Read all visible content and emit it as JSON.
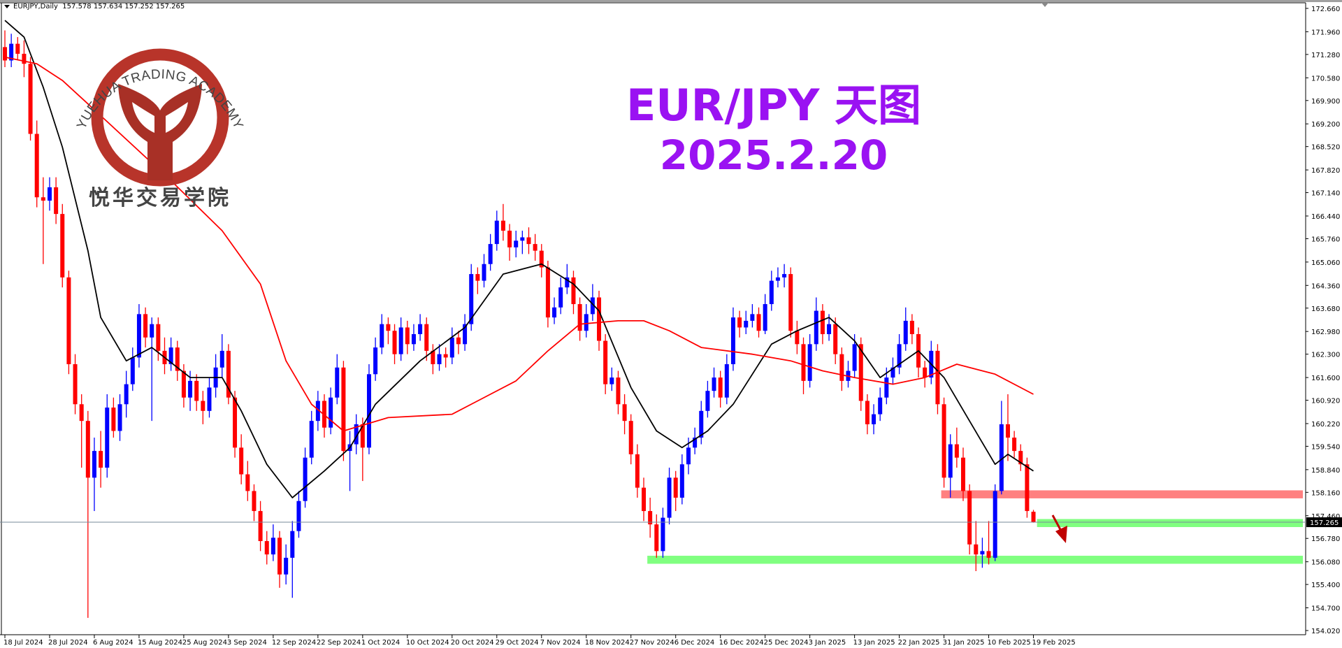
{
  "header": {
    "symbol_timeframe": "EURJPY,Daily",
    "ohlc": "157.578 157.634 157.252 157.265"
  },
  "title": {
    "line1": "EUR/JPY 天图",
    "line2": "2025.2.20"
  },
  "logo": {
    "text_en": "YUEHUA TRADING ACADEMY",
    "text_cn": "悦华交易学院",
    "color": "#b8342a"
  },
  "colors": {
    "bull": "#0000ff",
    "bear": "#ff0000",
    "ma_fast": "#000000",
    "ma_slow": "#ff0000",
    "resistance_zone": "#ff8080",
    "support_zone": "#80ff80",
    "title": "#9a12f2",
    "arrow": "#c00000"
  },
  "chart_data": {
    "type": "candlestick",
    "symbol": "EURJPY",
    "timeframe": "Daily",
    "ylim": [
      154.02,
      172.66
    ],
    "y_ticks": [
      172.66,
      171.96,
      171.28,
      170.58,
      169.9,
      169.2,
      168.52,
      167.82,
      167.14,
      166.44,
      165.76,
      165.06,
      164.36,
      163.68,
      162.98,
      162.3,
      161.6,
      160.92,
      160.22,
      159.54,
      158.84,
      158.16,
      157.46,
      156.78,
      156.08,
      155.4,
      154.7,
      154.02
    ],
    "x_tick_labels": [
      "18 Jul 2024",
      "28 Jul 2024",
      "6 Aug 2024",
      "15 Aug 2024",
      "25 Aug 2024",
      "3 Sep 2024",
      "12 Sep 2024",
      "22 Sep 2024",
      "1 Oct 2024",
      "10 Oct 2024",
      "20 Oct 2024",
      "29 Oct 2024",
      "7 Nov 2024",
      "18 Nov 2024",
      "27 Nov 2024",
      "6 Dec 2024",
      "16 Dec 2024",
      "25 Dec 2024",
      "3 Jan 2025",
      "13 Jan 2025",
      "22 Jan 2025",
      "31 Jan 2025",
      "10 Feb 2025",
      "19 Feb 2025"
    ],
    "current_price": "157.265",
    "ohlc": [
      [
        171.5,
        172.0,
        170.9,
        171.1
      ],
      [
        171.1,
        171.9,
        170.9,
        171.6
      ],
      [
        171.6,
        171.8,
        171.1,
        171.3
      ],
      [
        171.3,
        171.7,
        170.6,
        171.0
      ],
      [
        171.0,
        171.2,
        168.7,
        168.9
      ],
      [
        168.9,
        169.3,
        166.7,
        167.0
      ],
      [
        167.0,
        167.6,
        165.0,
        166.9
      ],
      [
        166.9,
        167.6,
        166.6,
        167.3
      ],
      [
        167.3,
        167.6,
        166.2,
        166.5
      ],
      [
        166.5,
        166.8,
        164.3,
        164.6
      ],
      [
        164.6,
        164.8,
        161.7,
        162.0
      ],
      [
        162.0,
        162.3,
        160.5,
        160.8
      ],
      [
        160.8,
        161.1,
        158.9,
        160.3
      ],
      [
        160.3,
        160.6,
        154.4,
        158.6
      ],
      [
        158.6,
        159.8,
        157.6,
        159.4
      ],
      [
        159.4,
        160.0,
        158.3,
        158.9
      ],
      [
        158.9,
        161.1,
        158.6,
        160.7
      ],
      [
        160.7,
        161.0,
        159.8,
        160.0
      ],
      [
        160.0,
        161.1,
        159.7,
        160.8
      ],
      [
        160.8,
        161.8,
        160.4,
        161.4
      ],
      [
        161.4,
        162.5,
        161.2,
        162.2
      ],
      [
        162.2,
        163.8,
        161.9,
        163.5
      ],
      [
        163.5,
        163.7,
        162.5,
        162.8
      ],
      [
        162.8,
        163.4,
        160.3,
        163.2
      ],
      [
        163.2,
        163.4,
        162.1,
        162.4
      ],
      [
        162.4,
        162.8,
        161.7,
        162.0
      ],
      [
        162.0,
        162.8,
        161.8,
        162.5
      ],
      [
        162.5,
        162.7,
        161.5,
        161.8
      ],
      [
        161.8,
        162.0,
        160.7,
        161.0
      ],
      [
        161.0,
        161.8,
        160.6,
        161.5
      ],
      [
        161.5,
        161.7,
        160.6,
        160.9
      ],
      [
        160.9,
        161.2,
        160.2,
        160.6
      ],
      [
        160.6,
        161.6,
        160.4,
        161.3
      ],
      [
        161.3,
        162.3,
        161.0,
        161.9
      ],
      [
        161.9,
        162.9,
        161.6,
        162.4
      ],
      [
        162.4,
        162.6,
        160.8,
        161.0
      ],
      [
        161.0,
        161.2,
        159.2,
        159.5
      ],
      [
        159.5,
        159.9,
        158.4,
        158.7
      ],
      [
        158.7,
        159.1,
        157.9,
        158.2
      ],
      [
        158.2,
        158.4,
        157.3,
        157.6
      ],
      [
        157.6,
        157.9,
        156.4,
        156.7
      ],
      [
        156.7,
        157.0,
        156.0,
        156.3
      ],
      [
        156.3,
        157.2,
        156.1,
        156.8
      ],
      [
        156.8,
        157.0,
        155.3,
        155.7
      ],
      [
        155.7,
        156.6,
        155.4,
        156.2
      ],
      [
        156.2,
        157.3,
        155.0,
        157.0
      ],
      [
        157.0,
        158.2,
        156.8,
        157.9
      ],
      [
        157.9,
        159.5,
        157.7,
        159.2
      ],
      [
        159.2,
        160.6,
        159.0,
        160.3
      ],
      [
        160.3,
        161.2,
        160.0,
        160.9
      ],
      [
        160.9,
        161.1,
        159.8,
        160.1
      ],
      [
        160.1,
        161.3,
        159.9,
        161.0
      ],
      [
        161.0,
        162.3,
        160.8,
        161.9
      ],
      [
        161.9,
        162.1,
        159.1,
        159.4
      ],
      [
        159.4,
        160.0,
        158.2,
        159.6
      ],
      [
        159.6,
        160.5,
        159.3,
        160.2
      ],
      [
        160.2,
        160.4,
        158.5,
        159.5
      ],
      [
        159.5,
        162.0,
        159.3,
        161.7
      ],
      [
        161.7,
        162.8,
        161.5,
        162.5
      ],
      [
        162.5,
        163.5,
        162.3,
        163.2
      ],
      [
        163.2,
        163.4,
        162.6,
        163.0
      ],
      [
        163.0,
        163.2,
        162.0,
        162.3
      ],
      [
        162.3,
        163.4,
        162.1,
        163.1
      ],
      [
        163.1,
        163.3,
        162.3,
        162.6
      ],
      [
        162.6,
        163.2,
        162.4,
        162.9
      ],
      [
        162.9,
        163.5,
        162.7,
        163.2
      ],
      [
        163.2,
        163.4,
        162.1,
        162.4
      ],
      [
        162.4,
        162.6,
        161.7,
        162.0
      ],
      [
        162.0,
        162.6,
        161.8,
        162.3
      ],
      [
        162.3,
        162.5,
        161.9,
        162.2
      ],
      [
        162.2,
        163.1,
        162.0,
        162.8
      ],
      [
        162.8,
        163.0,
        162.3,
        162.6
      ],
      [
        162.6,
        163.5,
        162.4,
        163.2
      ],
      [
        163.2,
        165.0,
        163.0,
        164.7
      ],
      [
        164.7,
        164.9,
        164.1,
        164.5
      ],
      [
        164.5,
        165.3,
        164.3,
        165.0
      ],
      [
        165.0,
        165.9,
        164.8,
        165.6
      ],
      [
        165.6,
        166.6,
        165.4,
        166.3
      ],
      [
        166.3,
        166.8,
        165.7,
        166.0
      ],
      [
        166.0,
        166.2,
        165.1,
        165.5
      ],
      [
        165.5,
        166.0,
        165.2,
        165.7
      ],
      [
        165.7,
        166.0,
        165.3,
        165.8
      ],
      [
        165.8,
        166.1,
        165.3,
        165.6
      ],
      [
        165.6,
        165.9,
        165.1,
        165.4
      ],
      [
        165.4,
        165.6,
        164.6,
        164.9
      ],
      [
        164.9,
        165.1,
        163.1,
        163.4
      ],
      [
        163.4,
        164.0,
        163.2,
        163.7
      ],
      [
        163.7,
        164.6,
        163.5,
        164.3
      ],
      [
        164.3,
        165.0,
        164.1,
        164.6
      ],
      [
        164.6,
        164.8,
        163.5,
        163.8
      ],
      [
        163.8,
        164.0,
        162.7,
        163.0
      ],
      [
        163.0,
        163.8,
        162.8,
        163.5
      ],
      [
        163.5,
        164.4,
        163.3,
        164.0
      ],
      [
        164.0,
        164.2,
        162.4,
        162.7
      ],
      [
        162.7,
        162.9,
        161.1,
        161.4
      ],
      [
        161.4,
        161.9,
        161.2,
        161.6
      ],
      [
        161.6,
        161.8,
        160.5,
        160.8
      ],
      [
        160.8,
        161.1,
        159.9,
        160.3
      ],
      [
        160.3,
        160.5,
        159.0,
        159.3
      ],
      [
        159.3,
        159.6,
        158.0,
        158.3
      ],
      [
        158.3,
        158.6,
        157.3,
        157.6
      ],
      [
        157.6,
        158.0,
        156.8,
        157.2
      ],
      [
        157.2,
        157.5,
        156.2,
        156.4
      ],
      [
        156.4,
        157.7,
        156.2,
        157.4
      ],
      [
        157.4,
        158.9,
        157.2,
        158.6
      ],
      [
        158.6,
        158.8,
        157.6,
        158.0
      ],
      [
        158.0,
        159.3,
        157.8,
        159.0
      ],
      [
        159.0,
        159.8,
        158.7,
        159.5
      ],
      [
        159.5,
        160.1,
        159.3,
        159.8
      ],
      [
        159.8,
        160.9,
        159.6,
        160.6
      ],
      [
        160.6,
        161.5,
        160.4,
        161.2
      ],
      [
        161.2,
        161.9,
        161.0,
        161.6
      ],
      [
        161.6,
        161.8,
        160.7,
        161.0
      ],
      [
        161.0,
        162.3,
        160.8,
        162.0
      ],
      [
        162.0,
        163.7,
        161.8,
        163.4
      ],
      [
        163.4,
        163.6,
        162.8,
        163.1
      ],
      [
        163.1,
        163.6,
        162.9,
        163.3
      ],
      [
        163.3,
        163.8,
        163.1,
        163.5
      ],
      [
        163.5,
        163.7,
        162.8,
        163.0
      ],
      [
        163.0,
        164.1,
        162.9,
        163.8
      ],
      [
        163.8,
        164.8,
        163.6,
        164.5
      ],
      [
        164.5,
        164.9,
        164.3,
        164.6
      ],
      [
        164.6,
        165.0,
        164.3,
        164.7
      ],
      [
        164.7,
        164.9,
        162.8,
        163.0
      ],
      [
        163.0,
        163.3,
        162.3,
        162.6
      ],
      [
        162.6,
        162.8,
        161.1,
        161.5
      ],
      [
        161.5,
        162.9,
        161.3,
        162.6
      ],
      [
        162.6,
        164.0,
        162.4,
        163.6
      ],
      [
        163.6,
        163.8,
        162.6,
        162.9
      ],
      [
        162.9,
        163.5,
        162.7,
        163.2
      ],
      [
        163.2,
        163.4,
        162.0,
        162.3
      ],
      [
        162.3,
        162.5,
        161.2,
        161.5
      ],
      [
        161.5,
        162.1,
        161.3,
        161.8
      ],
      [
        161.8,
        162.9,
        161.6,
        162.6
      ],
      [
        162.6,
        162.8,
        160.6,
        160.9
      ],
      [
        160.9,
        161.1,
        159.9,
        160.2
      ],
      [
        160.2,
        160.8,
        159.9,
        160.5
      ],
      [
        160.5,
        161.3,
        160.3,
        161.0
      ],
      [
        161.0,
        161.9,
        160.8,
        161.6
      ],
      [
        161.6,
        162.2,
        161.4,
        161.9
      ],
      [
        161.9,
        162.9,
        161.7,
        162.6
      ],
      [
        162.6,
        163.7,
        162.4,
        163.3
      ],
      [
        163.3,
        163.5,
        162.6,
        162.9
      ],
      [
        162.9,
        163.1,
        161.6,
        161.9
      ],
      [
        161.9,
        162.1,
        161.3,
        161.6
      ],
      [
        161.6,
        162.7,
        161.4,
        162.4
      ],
      [
        162.4,
        162.6,
        160.5,
        160.8
      ],
      [
        160.8,
        161.0,
        158.3,
        158.6
      ],
      [
        158.6,
        159.9,
        158.0,
        159.6
      ],
      [
        159.6,
        160.1,
        158.9,
        159.2
      ],
      [
        159.2,
        159.5,
        157.9,
        158.2
      ],
      [
        158.2,
        158.4,
        156.3,
        156.6
      ],
      [
        156.6,
        157.3,
        155.8,
        156.3
      ],
      [
        156.3,
        156.8,
        155.9,
        156.4
      ],
      [
        156.4,
        157.3,
        156.0,
        156.2
      ],
      [
        156.2,
        158.4,
        156.1,
        158.2
      ],
      [
        158.2,
        160.9,
        158.1,
        160.2
      ],
      [
        160.2,
        161.1,
        159.1,
        159.8
      ],
      [
        159.8,
        160.0,
        159.2,
        159.4
      ],
      [
        159.4,
        159.6,
        158.8,
        159.0
      ],
      [
        159.0,
        159.2,
        157.4,
        157.6
      ],
      [
        157.578,
        157.634,
        157.252,
        157.265
      ]
    ],
    "moving_averages": [
      {
        "color": "#000000",
        "points": [
          [
            0,
            172.3
          ],
          [
            3,
            171.8
          ],
          [
            6,
            170.3
          ],
          [
            9,
            168.5
          ],
          [
            13,
            165.4
          ],
          [
            15,
            163.4
          ],
          [
            19,
            162.1
          ],
          [
            23,
            162.5
          ],
          [
            29,
            161.6
          ],
          [
            34,
            161.6
          ],
          [
            37,
            160.6
          ],
          [
            41,
            159.0
          ],
          [
            45,
            158.0
          ],
          [
            50,
            158.8
          ],
          [
            54,
            159.5
          ],
          [
            58,
            160.8
          ],
          [
            65,
            162.1
          ],
          [
            72,
            163.1
          ],
          [
            78,
            164.7
          ],
          [
            84,
            165.0
          ],
          [
            89,
            164.4
          ],
          [
            93,
            163.6
          ],
          [
            98,
            161.3
          ],
          [
            102,
            160.0
          ],
          [
            106,
            159.5
          ],
          [
            110,
            160.0
          ],
          [
            114,
            160.8
          ],
          [
            120,
            162.6
          ],
          [
            124,
            163.0
          ],
          [
            129,
            163.4
          ],
          [
            133,
            162.7
          ],
          [
            137,
            161.6
          ],
          [
            143,
            162.4
          ],
          [
            147,
            161.6
          ],
          [
            151,
            160.3
          ],
          [
            155,
            159.0
          ],
          [
            157,
            159.3
          ],
          [
            161,
            158.8
          ]
        ]
      },
      {
        "color": "#ff0000",
        "points": [
          [
            0,
            171.2
          ],
          [
            5,
            171.0
          ],
          [
            9,
            170.5
          ],
          [
            13,
            169.8
          ],
          [
            26,
            167.5
          ],
          [
            34,
            166.0
          ],
          [
            40,
            164.4
          ],
          [
            44,
            162.1
          ],
          [
            48,
            160.8
          ],
          [
            53,
            160.0
          ],
          [
            60,
            160.4
          ],
          [
            70,
            160.5
          ],
          [
            74,
            160.9
          ],
          [
            80,
            161.5
          ],
          [
            85,
            162.4
          ],
          [
            90,
            163.2
          ],
          [
            96,
            163.3
          ],
          [
            100,
            163.3
          ],
          [
            104,
            163.0
          ],
          [
            109,
            162.5
          ],
          [
            117,
            162.3
          ],
          [
            123,
            162.1
          ],
          [
            128,
            161.8
          ],
          [
            133,
            161.6
          ],
          [
            139,
            161.4
          ],
          [
            144,
            161.6
          ],
          [
            149,
            162.0
          ],
          [
            155,
            161.7
          ],
          [
            161,
            161.1
          ]
        ]
      }
    ],
    "zones": [
      {
        "kind": "resistance",
        "from_bar": 147,
        "price_low": 157.98,
        "price_high": 158.22,
        "color": "#ff8080"
      },
      {
        "kind": "support",
        "from_bar": 162,
        "price_low": 157.12,
        "price_high": 157.36,
        "color": "#80ff80"
      },
      {
        "kind": "support",
        "from_bar": 101,
        "price_low": 156.02,
        "price_high": 156.26,
        "color": "#80ff80"
      }
    ],
    "annotation_arrow": {
      "direction": "down",
      "color": "#c00000"
    }
  }
}
